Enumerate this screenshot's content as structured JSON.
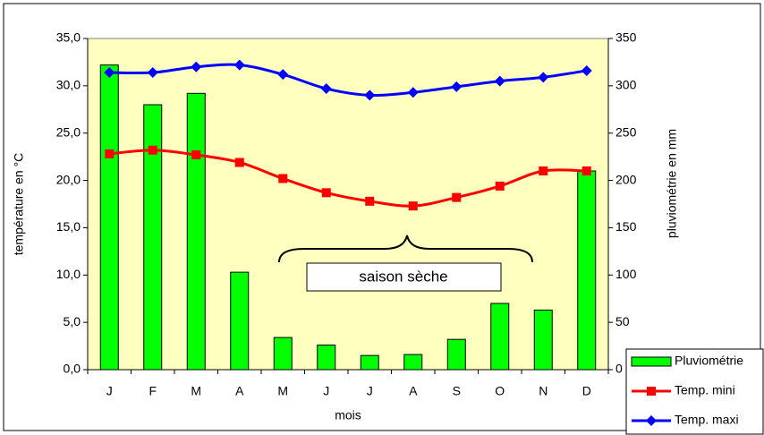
{
  "chart_data": {
    "type": "bar-line",
    "categories": [
      "J",
      "F",
      "M",
      "A",
      "M",
      "J",
      "J",
      "A",
      "S",
      "O",
      "N",
      "D"
    ],
    "series": [
      {
        "name": "Pluviométrie",
        "type": "bar",
        "axis": "y2",
        "color": "#00ff00",
        "values": [
          322,
          280,
          292,
          103,
          34,
          26,
          15,
          16,
          32,
          70,
          63,
          210
        ]
      },
      {
        "name": "Temp. mini",
        "type": "line",
        "marker": "square",
        "color": "#ff0000",
        "values": [
          22.8,
          23.2,
          22.7,
          21.9,
          20.2,
          18.7,
          17.8,
          17.3,
          18.2,
          19.4,
          21.0,
          21.0
        ]
      },
      {
        "name": "Temp. maxi",
        "type": "line",
        "marker": "diamond",
        "color": "#0000ff",
        "values": [
          31.4,
          31.4,
          32.0,
          32.2,
          31.2,
          29.7,
          29.0,
          29.3,
          29.9,
          30.5,
          30.9,
          31.6
        ]
      }
    ],
    "ylabel": "température en °C",
    "y2label": "pluviométrie en mm",
    "xlabel": "mois",
    "ylim": [
      0,
      35
    ],
    "yticks": [
      {
        "value": 0,
        "label": "0,0"
      },
      {
        "value": 5,
        "label": "5,0"
      },
      {
        "value": 10,
        "label": "10,0"
      },
      {
        "value": 15,
        "label": "15,0"
      },
      {
        "value": 20,
        "label": "20,0"
      },
      {
        "value": 25,
        "label": "25,0"
      },
      {
        "value": 30,
        "label": "30,0"
      },
      {
        "value": 35,
        "label": "35,0"
      }
    ],
    "y2lim": [
      0,
      350
    ],
    "y2ticks": [
      0,
      50,
      100,
      150,
      200,
      250,
      300,
      350
    ],
    "annotation": "saison sèche",
    "legend": "bottom-right",
    "plot_background": "#ffffc0",
    "grid": false
  }
}
